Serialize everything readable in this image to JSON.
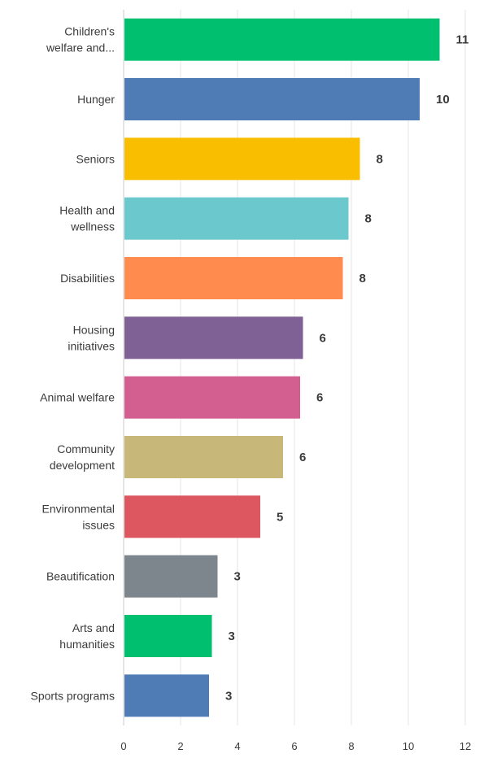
{
  "chart_data": {
    "type": "bar",
    "orientation": "horizontal",
    "title": "",
    "xlabel": "",
    "ylabel": "",
    "xlim": [
      0,
      12
    ],
    "x_ticks": [
      0,
      2,
      4,
      6,
      8,
      10,
      12
    ],
    "grid": true,
    "categories": [
      [
        "Children's",
        "welfare and..."
      ],
      [
        "Hunger"
      ],
      [
        "Seniors"
      ],
      [
        "Health and",
        "wellness"
      ],
      [
        "Disabilities"
      ],
      [
        "Housing",
        "initiatives"
      ],
      [
        "Animal welfare"
      ],
      [
        "Community",
        "development"
      ],
      [
        "Environmental",
        "issues"
      ],
      [
        "Beautification"
      ],
      [
        "Arts and",
        "humanities"
      ],
      [
        "Sports programs"
      ]
    ],
    "values": [
      11.1,
      10.4,
      8.3,
      7.9,
      7.7,
      6.3,
      6.2,
      5.6,
      4.8,
      3.3,
      3.1,
      3.0
    ],
    "value_labels": [
      "11",
      "10",
      "8",
      "8",
      "8",
      "6",
      "6",
      "6",
      "5",
      "3",
      "3",
      "3"
    ],
    "colors": [
      "#00bf6f",
      "#507cb6",
      "#f9be00",
      "#6bc8cd",
      "#ff8b4f",
      "#7f6195",
      "#d25f90",
      "#c7b879",
      "#dd5761",
      "#7d868c",
      "#00bf6f",
      "#507cb6"
    ]
  }
}
